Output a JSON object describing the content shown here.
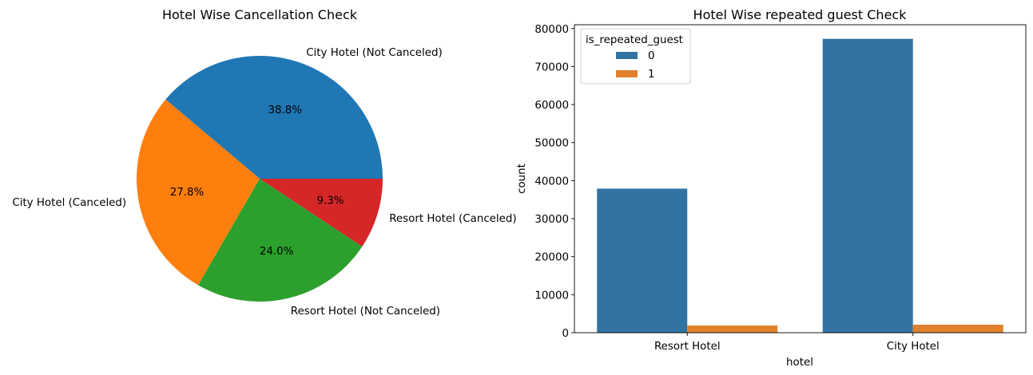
{
  "chart_data": [
    {
      "type": "pie",
      "title": "Hotel Wise Cancellation Check",
      "slices": [
        {
          "label": "City Hotel (Not Canceled)",
          "value": 38.8,
          "pct_label": "38.8%",
          "color": "#1f77b4"
        },
        {
          "label": "City Hotel (Canceled)",
          "value": 27.8,
          "pct_label": "27.8%",
          "color": "#ff7f0e"
        },
        {
          "label": "Resort Hotel (Not Canceled)",
          "value": 24.0,
          "pct_label": "24.0%",
          "color": "#2ca02c"
        },
        {
          "label": "Resort Hotel (Canceled)",
          "value": 9.3,
          "pct_label": "9.3%",
          "color": "#d62728"
        }
      ]
    },
    {
      "type": "bar",
      "title": "Hotel Wise repeated guest Check",
      "xlabel": "hotel",
      "ylabel": "count",
      "categories": [
        "Resort Hotel",
        "City Hotel"
      ],
      "ylim": [
        0,
        81000
      ],
      "yticks": [
        0,
        10000,
        20000,
        30000,
        40000,
        50000,
        60000,
        70000,
        80000
      ],
      "legend_title": "is_repeated_guest",
      "legend_position": "top-left",
      "series": [
        {
          "name": "0",
          "values": [
            37900,
            77300
          ],
          "color": "#3274a1"
        },
        {
          "name": "1",
          "values": [
            1900,
            2100
          ],
          "color": "#e1812c"
        }
      ]
    }
  ]
}
